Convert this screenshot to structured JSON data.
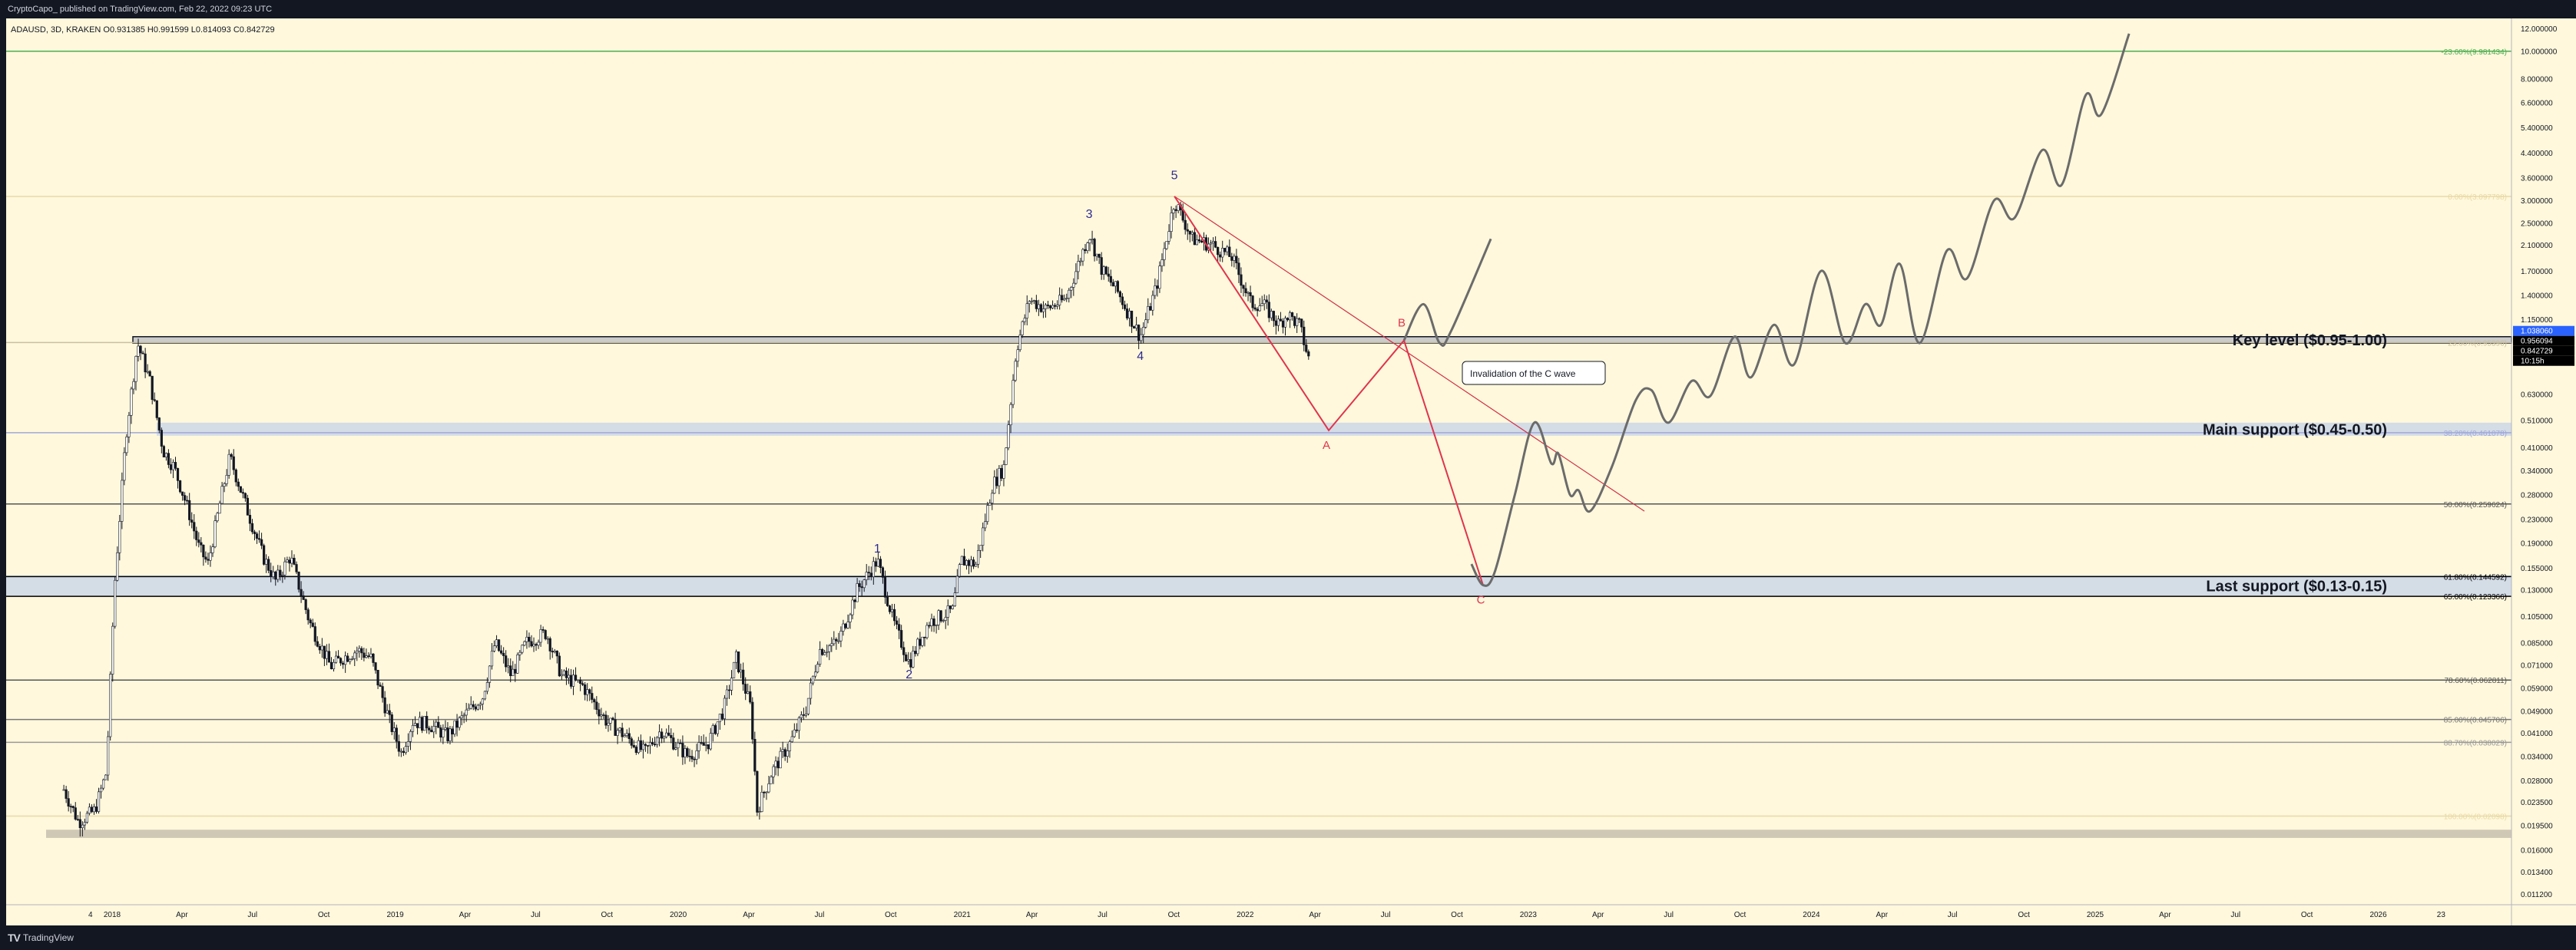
{
  "header": {
    "publisher": "CryptoCapo_ published on TradingView.com, Feb 22, 2022 09:23 UTC",
    "symbol_line": "ADAUSD, 3D, KRAKEN  O0.931385  H0.991599  L0.814093  C0.842729"
  },
  "footer": {
    "brand": "TradingView"
  },
  "chart_data": {
    "type": "candlestick",
    "symbol": "ADAUSD",
    "timeframe": "3D",
    "exchange": "KRAKEN",
    "ohlc": {
      "open": 0.931385,
      "high": 0.991599,
      "low": 0.814093,
      "close": 0.842729
    },
    "y_scale": "log",
    "y_ticks": [
      "12.000000",
      "10.000000",
      "8.000000",
      "6.600000",
      "5.400000",
      "4.400000",
      "3.600000",
      "3.000000",
      "2.500000",
      "2.100000",
      "1.700000",
      "1.400000",
      "1.150000",
      "0.630000",
      "0.510000",
      "0.410000",
      "0.340000",
      "0.280000",
      "0.230000",
      "0.190000",
      "0.155000",
      "0.130000",
      "0.105000",
      "0.085000",
      "0.071000",
      "0.059000",
      "0.049000",
      "0.041000",
      "0.034000",
      "0.028000",
      "0.023500",
      "0.019500",
      "0.016000",
      "0.013400",
      "0.011200"
    ],
    "price_badges": [
      {
        "text": "1.038060",
        "bg": "#2962ff",
        "value": 1.03806
      },
      {
        "text": "0.956094",
        "bg": "#000000",
        "value": 0.956094
      },
      {
        "text": "0.842729",
        "bg": "#000000",
        "value": 0.842729
      },
      {
        "text": "10:15h",
        "bg": "#000000",
        "value": 0.79
      }
    ],
    "x_labels": [
      "4",
      "2018",
      "Apr",
      "Jul",
      "Oct",
      "2019",
      "Apr",
      "Jul",
      "Oct",
      "2020",
      "Apr",
      "Jul",
      "Oct",
      "2021",
      "Apr",
      "Jul",
      "Oct",
      "2022",
      "Apr",
      "Jul",
      "Oct",
      "2023",
      "Apr",
      "Jul",
      "Oct",
      "2024",
      "Apr",
      "Jul",
      "Oct",
      "2025",
      "Apr",
      "Jul",
      "Oct",
      "2026",
      "23"
    ],
    "fib_levels": [
      {
        "label": "-23.60%(9.981434)",
        "price": 9.981434,
        "color": "#4caf50"
      },
      {
        "label": "0.00%(3.097798)",
        "price": 3.097798,
        "color": "#e8d9a6"
      },
      {
        "label": "23.60%(0.95396)",
        "price": 0.95396,
        "color": "#c9bfa0"
      },
      {
        "label": "38.20%(0.461078)",
        "price": 0.461078,
        "color": "#9fa8da"
      },
      {
        "label": "50.00%(0.259624)",
        "price": 0.259624,
        "color": "#555555"
      },
      {
        "label": "61.80%(0.144592)",
        "price": 0.144592,
        "color": "#000000"
      },
      {
        "label": "65.00%(0.123366)",
        "price": 0.123366,
        "color": "#000000"
      },
      {
        "label": "78.60%(0.062811)",
        "price": 0.062811,
        "color": "#555555"
      },
      {
        "label": "85.00%(0.045706)",
        "price": 0.045706,
        "color": "#777777"
      },
      {
        "label": "88.70%(0.038029)",
        "price": 0.038029,
        "color": "#999999"
      },
      {
        "label": "100.00%(0.02098)",
        "price": 0.02098,
        "color": "#e8d9a6"
      }
    ],
    "zones": [
      {
        "label": "Key level ($0.95-1.00)",
        "low": 0.95,
        "high": 1.0,
        "color": "#b9bdc4"
      },
      {
        "label": "Main support ($0.45-0.50)",
        "low": 0.45,
        "high": 0.5,
        "color": "#c6d3ea"
      },
      {
        "label": "Last support ($0.13-0.15)",
        "low": 0.123,
        "high": 0.146,
        "color": "#c6d3ea"
      },
      {
        "label": "",
        "low": 0.0176,
        "high": 0.0188,
        "color": "#bfb8a8"
      }
    ],
    "elliott_waves": [
      {
        "label": "1",
        "date": "2020-08-15",
        "price": 0.165
      },
      {
        "label": "2",
        "date": "2020-09-25",
        "price": 0.072
      },
      {
        "label": "3",
        "date": "2021-05-15",
        "price": 2.45
      },
      {
        "label": "4",
        "date": "2021-07-20",
        "price": 0.94
      },
      {
        "label": "5",
        "date": "2021-09-02",
        "price": 3.35
      }
    ],
    "abc_projection": {
      "points": [
        {
          "date": "2021-09-02",
          "price": 3.1
        },
        {
          "label": "A",
          "date": "2022-03-20",
          "price": 0.47
        },
        {
          "label": "B",
          "date": "2022-06-25",
          "price": 0.97
        },
        {
          "label": "C",
          "date": "2022-10-05",
          "price": 0.135
        }
      ]
    },
    "trendline": {
      "from": {
        "date": "2021-09-02",
        "price": 3.1
      },
      "to": {
        "date": "2023-05-01",
        "price": 0.245
      }
    },
    "annotation": {
      "text": "Invalidation of the C wave"
    },
    "projection_path_1": [
      [
        "2022-06-25",
        0.97
      ],
      [
        "2022-07-20",
        1.3
      ],
      [
        "2022-08-10",
        0.95
      ],
      [
        "2022-08-25",
        1.05
      ],
      [
        "2022-10-15",
        2.2
      ]
    ],
    "projection_path_2": [
      [
        "2022-09-20",
        0.16
      ],
      [
        "2022-10-05",
        0.135
      ],
      [
        "2022-10-20",
        0.15
      ],
      [
        "2022-11-15",
        0.28
      ],
      [
        "2022-12-10",
        0.5
      ],
      [
        "2023-01-01",
        0.36
      ],
      [
        "2023-01-10",
        0.39
      ],
      [
        "2023-01-25",
        0.28
      ],
      [
        "2023-02-05",
        0.29
      ],
      [
        "2023-02-20",
        0.245
      ],
      [
        "2023-03-20",
        0.35
      ],
      [
        "2023-04-20",
        0.6
      ],
      [
        "2023-05-10",
        0.65
      ],
      [
        "2023-06-01",
        0.5
      ],
      [
        "2023-07-01",
        0.7
      ],
      [
        "2023-07-25",
        0.62
      ],
      [
        "2023-08-25",
        1.0
      ],
      [
        "2023-09-15",
        0.72
      ],
      [
        "2023-10-15",
        1.1
      ],
      [
        "2023-11-10",
        0.8
      ],
      [
        "2023-12-15",
        1.7
      ],
      [
        "2024-01-15",
        0.95
      ],
      [
        "2024-02-10",
        1.3
      ],
      [
        "2024-03-01",
        1.1
      ],
      [
        "2024-03-25",
        1.8
      ],
      [
        "2024-04-20",
        0.95
      ],
      [
        "2024-05-25",
        2.0
      ],
      [
        "2024-06-20",
        1.6
      ],
      [
        "2024-07-25",
        3.0
      ],
      [
        "2024-08-20",
        2.6
      ],
      [
        "2024-09-25",
        4.5
      ],
      [
        "2024-10-20",
        3.4
      ],
      [
        "2024-11-20",
        7.0
      ],
      [
        "2024-12-10",
        6.0
      ],
      [
        "2025-01-15",
        11.5
      ]
    ],
    "price_path": [
      [
        "2017-10-01",
        0.026
      ],
      [
        "2017-10-20",
        0.02
      ],
      [
        "2017-11-10",
        0.022
      ],
      [
        "2017-11-25",
        0.03
      ],
      [
        "2017-12-05",
        0.13
      ],
      [
        "2017-12-20",
        0.45
      ],
      [
        "2018-01-04",
        0.95
      ],
      [
        "2018-01-20",
        0.7
      ],
      [
        "2018-02-06",
        0.4
      ],
      [
        "2018-02-20",
        0.35
      ],
      [
        "2018-03-10",
        0.25
      ],
      [
        "2018-03-25",
        0.18
      ],
      [
        "2018-04-05",
        0.16
      ],
      [
        "2018-04-20",
        0.26
      ],
      [
        "2018-05-03",
        0.38
      ],
      [
        "2018-05-25",
        0.25
      ],
      [
        "2018-06-15",
        0.17
      ],
      [
        "2018-07-01",
        0.14
      ],
      [
        "2018-07-20",
        0.17
      ],
      [
        "2018-08-14",
        0.1
      ],
      [
        "2018-09-10",
        0.07
      ],
      [
        "2018-09-25",
        0.075
      ],
      [
        "2018-10-15",
        0.08
      ],
      [
        "2018-11-01",
        0.075
      ],
      [
        "2018-11-25",
        0.045
      ],
      [
        "2018-12-10",
        0.035
      ],
      [
        "2018-12-25",
        0.045
      ],
      [
        "2019-01-15",
        0.044
      ],
      [
        "2019-02-08",
        0.04
      ],
      [
        "2019-03-01",
        0.047
      ],
      [
        "2019-03-25",
        0.055
      ],
      [
        "2019-04-10",
        0.085
      ],
      [
        "2019-05-01",
        0.065
      ],
      [
        "2019-05-20",
        0.085
      ],
      [
        "2019-06-15",
        0.092
      ],
      [
        "2019-07-05",
        0.065
      ],
      [
        "2019-08-01",
        0.06
      ],
      [
        "2019-09-01",
        0.045
      ],
      [
        "2019-09-25",
        0.04
      ],
      [
        "2019-10-20",
        0.035
      ],
      [
        "2019-11-10",
        0.042
      ],
      [
        "2019-12-15",
        0.034
      ],
      [
        "2020-01-10",
        0.038
      ],
      [
        "2020-01-30",
        0.05
      ],
      [
        "2020-02-15",
        0.075
      ],
      [
        "2020-03-05",
        0.05
      ],
      [
        "2020-03-13",
        0.022
      ],
      [
        "2020-04-01",
        0.03
      ],
      [
        "2020-04-25",
        0.038
      ],
      [
        "2020-05-15",
        0.05
      ],
      [
        "2020-06-01",
        0.08
      ],
      [
        "2020-06-25",
        0.085
      ],
      [
        "2020-07-20",
        0.13
      ],
      [
        "2020-08-15",
        0.165
      ],
      [
        "2020-09-05",
        0.1
      ],
      [
        "2020-09-25",
        0.072
      ],
      [
        "2020-10-20",
        0.1
      ],
      [
        "2020-11-20",
        0.11
      ],
      [
        "2020-12-01",
        0.165
      ],
      [
        "2020-12-20",
        0.16
      ],
      [
        "2021-01-10",
        0.3
      ],
      [
        "2021-01-25",
        0.35
      ],
      [
        "2021-02-10",
        0.9
      ],
      [
        "2021-02-27",
        1.35
      ],
      [
        "2021-03-20",
        1.25
      ],
      [
        "2021-04-15",
        1.35
      ],
      [
        "2021-05-15",
        2.3
      ],
      [
        "2021-06-01",
        1.7
      ],
      [
        "2021-06-20",
        1.45
      ],
      [
        "2021-07-20",
        1.0
      ],
      [
        "2021-08-10",
        1.5
      ],
      [
        "2021-09-02",
        3.0
      ],
      [
        "2021-09-25",
        2.2
      ],
      [
        "2021-10-20",
        2.1
      ],
      [
        "2021-11-15",
        1.9
      ],
      [
        "2021-12-10",
        1.3
      ],
      [
        "2021-12-25",
        1.3
      ],
      [
        "2022-01-15",
        1.1
      ],
      [
        "2022-01-25",
        1.2
      ],
      [
        "2022-02-10",
        1.1
      ],
      [
        "2022-02-22",
        0.84
      ]
    ]
  }
}
